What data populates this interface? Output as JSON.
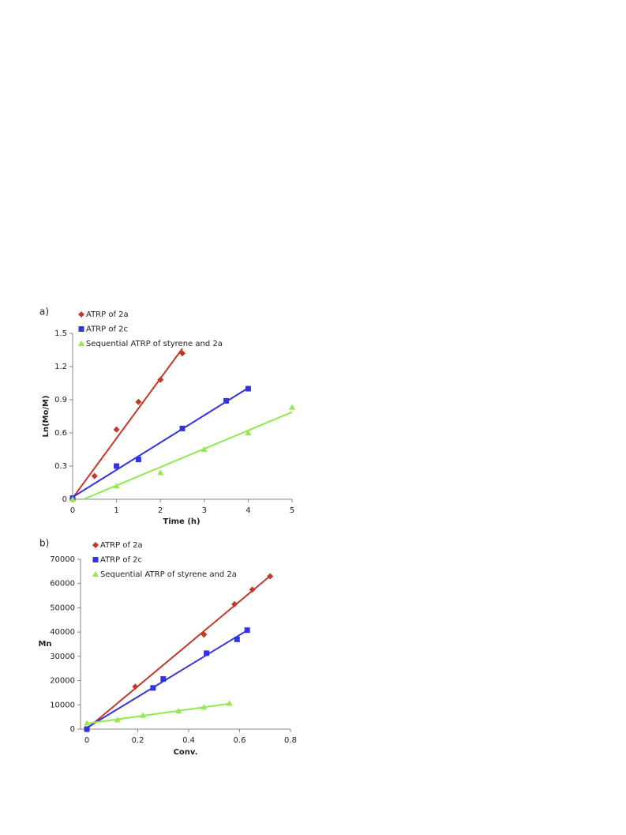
{
  "chart_data": [
    {
      "type": "scatter",
      "panel_label": "a)",
      "xlabel": "Time (h)",
      "ylabel": "Ln(Mo/M)",
      "xlim": [
        0,
        5
      ],
      "xticks": [
        0,
        1,
        2,
        3,
        4,
        5
      ],
      "ylim": [
        0,
        1.5
      ],
      "yticks": [
        0,
        0.3,
        0.6,
        0.9,
        1.2,
        1.5
      ],
      "trendline": "linear",
      "grid": false,
      "series": [
        {
          "name": "ATRP of 2a",
          "color": "#c0392b",
          "marker": "diamond",
          "x": [
            0,
            0.5,
            1,
            1.5,
            2,
            2.5
          ],
          "values": [
            0,
            0.21,
            0.63,
            0.88,
            1.08,
            1.32
          ]
        },
        {
          "name": "ATRP of 2c",
          "color": "#3333e0",
          "marker": "square",
          "x": [
            0,
            1,
            1.5,
            2.5,
            3.5,
            4
          ],
          "values": [
            0.01,
            0.3,
            0.36,
            0.64,
            0.89,
            1.0
          ]
        },
        {
          "name": "Sequential ATRP of styrene and 2a",
          "color": "#92e84f",
          "marker": "triangle",
          "x": [
            0,
            1,
            2,
            3,
            4,
            5
          ],
          "values": [
            0,
            0.12,
            0.24,
            0.45,
            0.6,
            0.83
          ]
        }
      ]
    },
    {
      "type": "scatter",
      "panel_label": "b)",
      "xlabel": "Conv.",
      "ylabel": "Mn",
      "xlim": [
        -0.025,
        0.8
      ],
      "xticks": [
        0,
        0.2,
        0.4,
        0.6,
        0.8
      ],
      "ylim": [
        0,
        70000
      ],
      "yticks": [
        0,
        10000,
        20000,
        30000,
        40000,
        50000,
        60000,
        70000
      ],
      "trendline": "linear",
      "grid": false,
      "series": [
        {
          "name": "ATRP of 2a",
          "color": "#c0392b",
          "marker": "diamond",
          "x": [
            0,
            0.19,
            0.46,
            0.58,
            0.65,
            0.72
          ],
          "values": [
            0,
            17500,
            39000,
            51500,
            57500,
            63000
          ]
        },
        {
          "name": "ATRP of 2c",
          "color": "#3333e0",
          "marker": "square",
          "x": [
            0,
            0.26,
            0.3,
            0.47,
            0.59,
            0.63
          ],
          "values": [
            0,
            17000,
            20700,
            31300,
            37000,
            40800
          ]
        },
        {
          "name": "Sequential ATRP of styrene and 2a",
          "color": "#92e84f",
          "marker": "triangle",
          "x": [
            0,
            0.12,
            0.22,
            0.36,
            0.46,
            0.56
          ],
          "values": [
            2500,
            3800,
            5600,
            7500,
            9000,
            10600
          ]
        }
      ]
    }
  ]
}
